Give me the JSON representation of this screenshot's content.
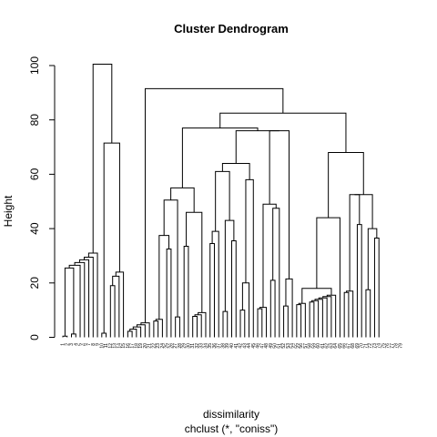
{
  "chart_data": {
    "type": "dendrogram",
    "title": "Cluster Dendrogram",
    "xlabel": "dissimilarity",
    "sub": "chclust (*, \"coniss\")",
    "ylabel": "Height",
    "ylim": [
      0,
      100
    ],
    "yticks": [
      0,
      20,
      40,
      60,
      80,
      100
    ],
    "n_leaves": 79,
    "leaf_order": [
      1,
      2,
      3,
      4,
      5,
      6,
      7,
      8,
      9,
      10,
      11,
      12,
      13,
      14,
      15,
      16,
      17,
      18,
      19,
      20,
      21,
      22,
      23,
      24,
      25,
      26,
      27,
      28,
      29,
      30,
      31,
      32,
      33,
      34,
      35,
      36,
      37,
      38,
      39,
      40,
      41,
      42,
      43,
      44,
      45,
      46,
      47,
      48,
      49,
      50,
      51,
      52,
      53,
      54,
      55,
      56,
      57,
      58,
      59,
      60,
      61,
      62,
      63,
      64,
      65,
      66,
      67,
      68,
      69,
      70,
      71,
      72,
      73,
      74,
      75,
      76,
      77,
      78,
      79
    ],
    "merges": [
      [
        1,
        2,
        0.4
      ],
      [
        3,
        4,
        1.2
      ],
      [
        1,
        3,
        25.5
      ],
      [
        1,
        5,
        26.5
      ],
      [
        1,
        6,
        27.5
      ],
      [
        1,
        7,
        28.5
      ],
      [
        1,
        8,
        29.5
      ],
      [
        1,
        9,
        31
      ],
      [
        10,
        11,
        1.5
      ],
      [
        12,
        13,
        19
      ],
      [
        12,
        14,
        22.5
      ],
      [
        12,
        15,
        24
      ],
      [
        10,
        12,
        71.5
      ],
      [
        1,
        10,
        100.5
      ],
      [
        16,
        17,
        2.2
      ],
      [
        16,
        18,
        3
      ],
      [
        16,
        19,
        3.8
      ],
      [
        16,
        20,
        4.6
      ],
      [
        16,
        21,
        5.3
      ],
      [
        22,
        23,
        6
      ],
      [
        22,
        24,
        6.6
      ],
      [
        25,
        26,
        32.5
      ],
      [
        22,
        25,
        37.5
      ],
      [
        27,
        28,
        7.5
      ],
      [
        22,
        27,
        50.5
      ],
      [
        29,
        30,
        33.5
      ],
      [
        31,
        32,
        7.7
      ],
      [
        31,
        33,
        8.3
      ],
      [
        31,
        34,
        9.1
      ],
      [
        29,
        31,
        46
      ],
      [
        22,
        29,
        55
      ],
      [
        35,
        36,
        34.5
      ],
      [
        35,
        37,
        39
      ],
      [
        38,
        39,
        9.5
      ],
      [
        40,
        41,
        35.5
      ],
      [
        38,
        40,
        43
      ],
      [
        35,
        38,
        61
      ],
      [
        42,
        43,
        10
      ],
      [
        42,
        44,
        20
      ],
      [
        42,
        45,
        58
      ],
      [
        35,
        42,
        64
      ],
      [
        46,
        47,
        10.5
      ],
      [
        46,
        48,
        11
      ],
      [
        49,
        50,
        21
      ],
      [
        49,
        51,
        47.5
      ],
      [
        46,
        49,
        49
      ],
      [
        52,
        53,
        11.5
      ],
      [
        52,
        54,
        21.5
      ],
      [
        46,
        52,
        76
      ],
      [
        35,
        46,
        76
      ],
      [
        22,
        35,
        77
      ],
      [
        55,
        56,
        12
      ],
      [
        55,
        57,
        12.5
      ],
      [
        58,
        59,
        13
      ],
      [
        58,
        60,
        13.5
      ],
      [
        58,
        61,
        14
      ],
      [
        58,
        62,
        14.5
      ],
      [
        58,
        63,
        15
      ],
      [
        58,
        64,
        15.5
      ],
      [
        55,
        58,
        18
      ],
      [
        55,
        65,
        44
      ],
      [
        66,
        67,
        16.5
      ],
      [
        66,
        68,
        17
      ],
      [
        69,
        70,
        41.5
      ],
      [
        66,
        69,
        52.5
      ],
      [
        71,
        72,
        17.5
      ],
      [
        73,
        74,
        36.5
      ],
      [
        71,
        73,
        40
      ],
      [
        66,
        71,
        52.5
      ],
      [
        55,
        66,
        68
      ],
      [
        22,
        55,
        82.5
      ],
      [
        16,
        22,
        91.5
      ]
    ],
    "leaf_labels": [
      "1",
      "2",
      "3",
      "4",
      "5",
      "6",
      "7",
      "8",
      "9",
      "10",
      "11",
      "12",
      "13",
      "14",
      "15",
      "16",
      "17",
      "18",
      "19",
      "20",
      "21",
      "22",
      "23",
      "24",
      "25",
      "26",
      "27",
      "28",
      "29",
      "30",
      "31",
      "32",
      "33",
      "34",
      "35",
      "36",
      "37",
      "38",
      "39",
      "40",
      "41",
      "42",
      "43",
      "44",
      "45",
      "46",
      "47",
      "48",
      "49",
      "50",
      "51",
      "52",
      "53",
      "54",
      "55",
      "56",
      "57",
      "58",
      "59",
      "60",
      "61",
      "62",
      "63",
      "64",
      "65",
      "66",
      "67",
      "68",
      "69",
      "70",
      "71",
      "72",
      "73",
      "74",
      "75",
      "76",
      "77",
      "78",
      "79"
    ]
  }
}
